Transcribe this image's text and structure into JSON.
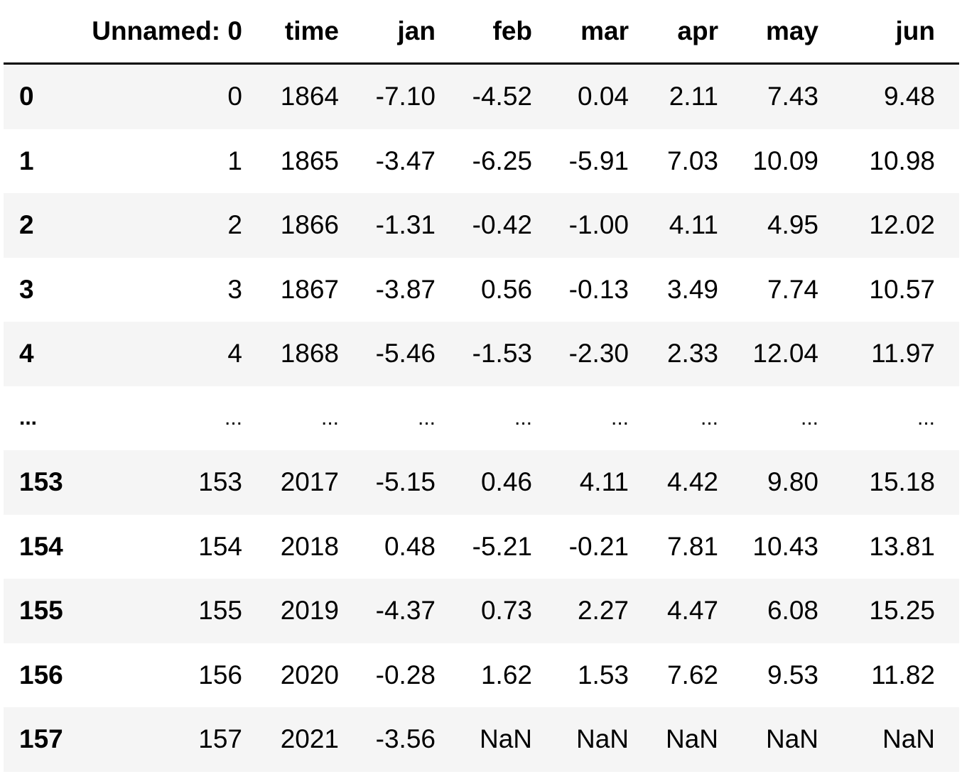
{
  "dataframe": {
    "columns": [
      "",
      "Unnamed: 0",
      "time",
      "jan",
      "feb",
      "mar",
      "apr",
      "may",
      "jun"
    ],
    "rows": [
      [
        "0",
        "0",
        "1864",
        "-7.10",
        "-4.52",
        "0.04",
        "2.11",
        "7.43",
        "9.48"
      ],
      [
        "1",
        "1",
        "1865",
        "-3.47",
        "-6.25",
        "-5.91",
        "7.03",
        "10.09",
        "10.98"
      ],
      [
        "2",
        "2",
        "1866",
        "-1.31",
        "-0.42",
        "-1.00",
        "4.11",
        "4.95",
        "12.02"
      ],
      [
        "3",
        "3",
        "1867",
        "-3.87",
        "0.56",
        "-0.13",
        "3.49",
        "7.74",
        "10.57"
      ],
      [
        "4",
        "4",
        "1868",
        "-5.46",
        "-1.53",
        "-2.30",
        "2.33",
        "12.04",
        "11.97"
      ],
      [
        "...",
        "...",
        "...",
        "...",
        "...",
        "...",
        "...",
        "...",
        "..."
      ],
      [
        "153",
        "153",
        "2017",
        "-5.15",
        "0.46",
        "4.11",
        "4.42",
        "9.80",
        "15.18"
      ],
      [
        "154",
        "154",
        "2018",
        "0.48",
        "-5.21",
        "-0.21",
        "7.81",
        "10.43",
        "13.81"
      ],
      [
        "155",
        "155",
        "2019",
        "-4.37",
        "0.73",
        "2.27",
        "4.47",
        "6.08",
        "15.25"
      ],
      [
        "156",
        "156",
        "2020",
        "-0.28",
        "1.62",
        "1.53",
        "7.62",
        "9.53",
        "11.82"
      ],
      [
        "157",
        "157",
        "2021",
        "-3.56",
        "NaN",
        "NaN",
        "NaN",
        "NaN",
        "NaN"
      ]
    ]
  },
  "colors": {
    "stripe": "#f5f5f5",
    "header_rule": "#000000",
    "text": "#000000"
  }
}
